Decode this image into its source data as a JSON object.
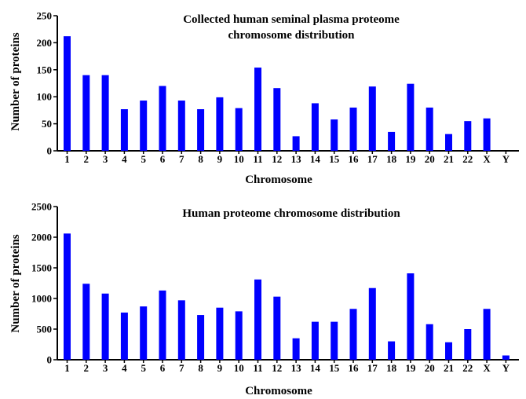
{
  "chart_data": [
    {
      "type": "bar",
      "title_line1": "Collected human seminal plasma proteome",
      "title_line2": "chromosome distribution",
      "xlabel": "Chromosome",
      "ylabel": "Number of proteins",
      "ylim": [
        0,
        250
      ],
      "yticks": [
        "0",
        "50",
        "100",
        "150",
        "200",
        "250"
      ],
      "categories": [
        "1",
        "2",
        "3",
        "4",
        "5",
        "6",
        "7",
        "8",
        "9",
        "10",
        "11",
        "12",
        "13",
        "14",
        "15",
        "16",
        "17",
        "18",
        "19",
        "20",
        "21",
        "22",
        "X",
        "Y"
      ],
      "values": [
        212,
        140,
        140,
        77,
        93,
        120,
        93,
        77,
        99,
        79,
        154,
        116,
        27,
        88,
        58,
        80,
        119,
        35,
        124,
        80,
        31,
        55,
        60,
        0
      ],
      "bar_color": "#0000ff",
      "grid": false
    },
    {
      "type": "bar",
      "title_line1": "Human proteome chromosome distribution",
      "title_line2": "",
      "xlabel": "Chromosome",
      "ylabel": "Number of proteins",
      "ylim": [
        0,
        2500
      ],
      "yticks": [
        "0",
        "500",
        "1000",
        "1500",
        "2000",
        "2500"
      ],
      "categories": [
        "1",
        "2",
        "3",
        "4",
        "5",
        "6",
        "7",
        "8",
        "9",
        "10",
        "11",
        "12",
        "13",
        "14",
        "15",
        "16",
        "17",
        "18",
        "19",
        "20",
        "21",
        "22",
        "X",
        "Y"
      ],
      "values": [
        2060,
        1240,
        1080,
        770,
        870,
        1130,
        970,
        730,
        850,
        790,
        1310,
        1030,
        350,
        620,
        620,
        830,
        1170,
        300,
        1410,
        580,
        285,
        500,
        830,
        70
      ],
      "bar_color": "#0000ff",
      "grid": false
    }
  ]
}
